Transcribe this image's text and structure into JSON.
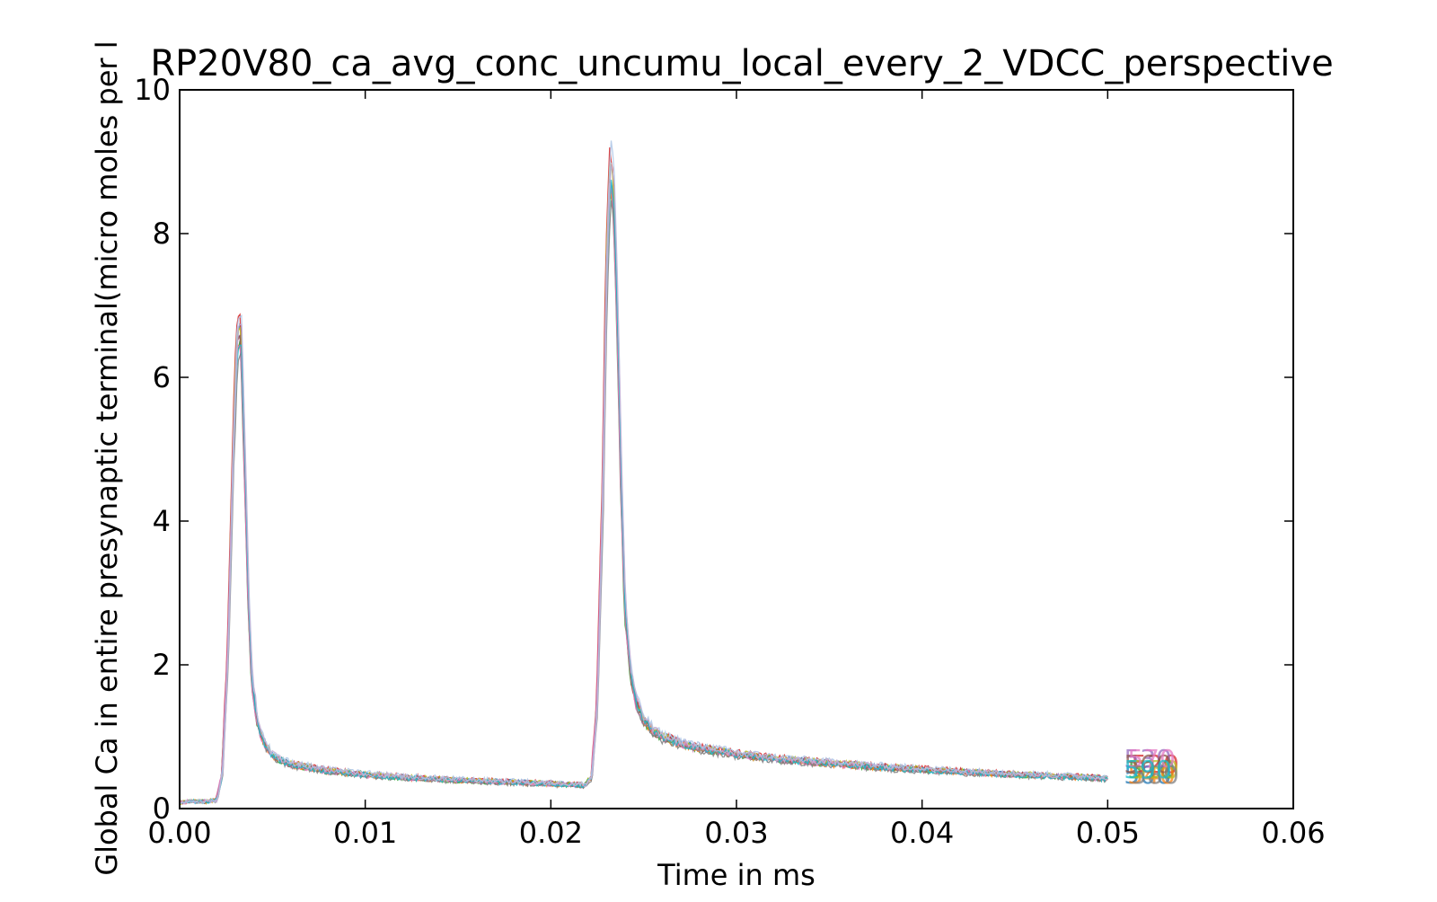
{
  "chart_data": {
    "type": "line",
    "title": "RP20V80_ca_avg_conc_uncumu_local_every_2_VDCC_perspective",
    "xlabel": "Time in ms",
    "ylabel": "Global Ca in entire presynaptic terminal(micro moles per l",
    "xlim": [
      0,
      0.06
    ],
    "ylim": [
      0,
      10
    ],
    "xticks": [
      0.0,
      0.01,
      0.02,
      0.03,
      0.04,
      0.05,
      0.06
    ],
    "xtick_labels": [
      "0.00",
      "0.01",
      "0.02",
      "0.03",
      "0.04",
      "0.05",
      "0.06"
    ],
    "yticks": [
      0,
      2,
      4,
      6,
      8,
      10
    ],
    "ytick_labels": [
      "0",
      "2",
      "4",
      "6",
      "8",
      "10"
    ],
    "grid": false,
    "legend": "none",
    "series_colors": [
      "#1f77b4",
      "#2ca02c",
      "#d62728",
      "#9467bd",
      "#ff7f0e",
      "#bcbd22",
      "#8c564b",
      "#e377c2",
      "#7f7f7f",
      "#17becf",
      "#aec7e8",
      "#c5b0d5"
    ],
    "mean_curve": {
      "x": [
        0.0,
        0.0005,
        0.001,
        0.0015,
        0.002,
        0.0023,
        0.0026,
        0.0029,
        0.0031,
        0.0033,
        0.0035,
        0.0037,
        0.0039,
        0.0042,
        0.0046,
        0.005,
        0.0055,
        0.006,
        0.007,
        0.008,
        0.01,
        0.012,
        0.015,
        0.018,
        0.02,
        0.021,
        0.0218,
        0.0222,
        0.0225,
        0.0228,
        0.023,
        0.0232,
        0.0234,
        0.0236,
        0.0238,
        0.024,
        0.0243,
        0.0246,
        0.025,
        0.0255,
        0.026,
        0.027,
        0.028,
        0.03,
        0.032,
        0.035,
        0.038,
        0.04,
        0.042,
        0.045,
        0.048,
        0.05
      ],
      "y": [
        0.08,
        0.1,
        0.1,
        0.1,
        0.12,
        0.5,
        2.2,
        5.2,
        6.6,
        6.7,
        5.0,
        3.0,
        1.8,
        1.2,
        0.9,
        0.75,
        0.68,
        0.62,
        0.58,
        0.53,
        0.48,
        0.44,
        0.4,
        0.37,
        0.35,
        0.34,
        0.33,
        0.45,
        1.5,
        4.5,
        7.6,
        9.0,
        8.6,
        6.8,
        4.5,
        2.8,
        1.9,
        1.5,
        1.25,
        1.1,
        1.0,
        0.92,
        0.85,
        0.77,
        0.7,
        0.64,
        0.58,
        0.55,
        0.52,
        0.48,
        0.45,
        0.42
      ]
    },
    "series_end_labels": [
      "500",
      "510",
      "520",
      "530",
      "540",
      "550",
      "560",
      "570",
      "580",
      "590"
    ]
  }
}
